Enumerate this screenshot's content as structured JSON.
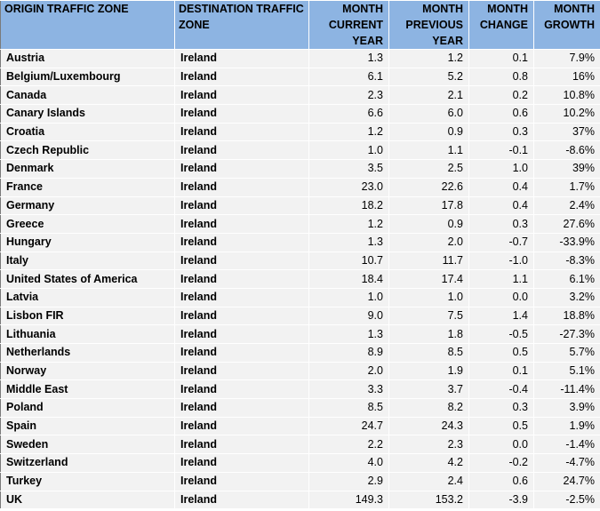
{
  "headers": [
    "ORIGIN TRAFFIC ZONE",
    "DESTINATION TRAFFIC ZONE",
    "MONTH CURRENT YEAR",
    "MONTH PREVIOUS YEAR",
    "MONTH CHANGE",
    "MONTH GROWTH"
  ],
  "rows": [
    [
      "Austria",
      "Ireland",
      "1.3",
      "1.2",
      "0.1",
      "7.9%"
    ],
    [
      "Belgium/Luxembourg",
      "Ireland",
      "6.1",
      "5.2",
      "0.8",
      "16%"
    ],
    [
      "Canada",
      "Ireland",
      "2.3",
      "2.1",
      "0.2",
      "10.8%"
    ],
    [
      "Canary Islands",
      "Ireland",
      "6.6",
      "6.0",
      "0.6",
      "10.2%"
    ],
    [
      "Croatia",
      "Ireland",
      "1.2",
      "0.9",
      "0.3",
      "37%"
    ],
    [
      "Czech Republic",
      "Ireland",
      "1.0",
      "1.1",
      "-0.1",
      "-8.6%"
    ],
    [
      "Denmark",
      "Ireland",
      "3.5",
      "2.5",
      "1.0",
      "39%"
    ],
    [
      "France",
      "Ireland",
      "23.0",
      "22.6",
      "0.4",
      "1.7%"
    ],
    [
      "Germany",
      "Ireland",
      "18.2",
      "17.8",
      "0.4",
      "2.4%"
    ],
    [
      "Greece",
      "Ireland",
      "1.2",
      "0.9",
      "0.3",
      "27.6%"
    ],
    [
      "Hungary",
      "Ireland",
      "1.3",
      "2.0",
      "-0.7",
      "-33.9%"
    ],
    [
      "Italy",
      "Ireland",
      "10.7",
      "11.7",
      "-1.0",
      "-8.3%"
    ],
    [
      "United States of America",
      "Ireland",
      "18.4",
      "17.4",
      "1.1",
      "6.1%"
    ],
    [
      "Latvia",
      "Ireland",
      "1.0",
      "1.0",
      "0.0",
      "3.2%"
    ],
    [
      "Lisbon FIR",
      "Ireland",
      "9.0",
      "7.5",
      "1.4",
      "18.8%"
    ],
    [
      "Lithuania",
      "Ireland",
      "1.3",
      "1.8",
      "-0.5",
      "-27.3%"
    ],
    [
      "Netherlands",
      "Ireland",
      "8.9",
      "8.5",
      "0.5",
      "5.7%"
    ],
    [
      "Norway",
      "Ireland",
      "2.0",
      "1.9",
      "0.1",
      "5.1%"
    ],
    [
      "Middle East",
      "Ireland",
      "3.3",
      "3.7",
      "-0.4",
      "-11.4%"
    ],
    [
      "Poland",
      "Ireland",
      "8.5",
      "8.2",
      "0.3",
      "3.9%"
    ],
    [
      "Spain",
      "Ireland",
      "24.7",
      "24.3",
      "0.5",
      "1.9%"
    ],
    [
      "Sweden",
      "Ireland",
      "2.2",
      "2.3",
      "0.0",
      "-1.4%"
    ],
    [
      "Switzerland",
      "Ireland",
      "4.0",
      "4.2",
      "-0.2",
      "-4.7%"
    ],
    [
      "Turkey",
      "Ireland",
      "2.9",
      "2.4",
      "0.6",
      "24.7%"
    ],
    [
      "UK",
      "Ireland",
      "149.3",
      "153.2",
      "-3.9",
      "-2.5%"
    ]
  ],
  "colors": {
    "header_bg": "#8DB4E2",
    "row_bg": "#F2F2F2",
    "grid_line": "#7a7a7a"
  }
}
